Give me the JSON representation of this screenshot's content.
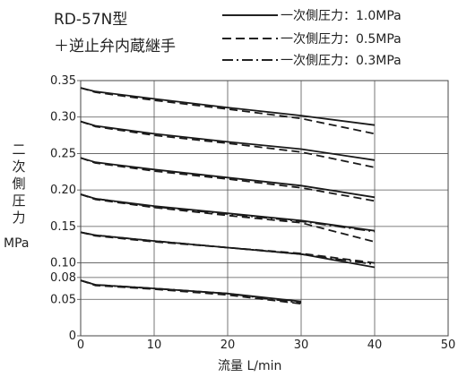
{
  "header": {
    "title_line1": "RD-57N型",
    "title_line2": "＋逆止弁内蔵継手"
  },
  "legend": [
    {
      "label": "一次側圧力：1.0MPa",
      "style": "solid"
    },
    {
      "label": "一次側圧力：0.5MPa",
      "style": "dashed"
    },
    {
      "label": "一次側圧力：0.3MPa",
      "style": "dash-dot"
    }
  ],
  "chart_data": {
    "type": "line",
    "xlabel": "流量 L/min",
    "ylabel": "二次側圧力",
    "ylabel_unit": "MPa",
    "xlim": [
      0,
      50
    ],
    "ylim": [
      0,
      0.35
    ],
    "x_ticks": [
      "0",
      "10",
      "20",
      "30",
      "40",
      "50"
    ],
    "y_ticks": [
      {
        "value": 0.35,
        "label": "0.35"
      },
      {
        "value": 0.3,
        "label": "0.30"
      },
      {
        "value": 0.25,
        "label": "0.25"
      },
      {
        "value": 0.2,
        "label": "0.20"
      },
      {
        "value": 0.15,
        "label": "0.15"
      },
      {
        "value": 0.1,
        "label": "0.10"
      },
      {
        "value": 0.08,
        "label": "0.08"
      },
      {
        "value": 0.05,
        "label": "0.05"
      },
      {
        "value": 0,
        "label": "0"
      }
    ],
    "grid": true,
    "series": [
      {
        "name": "一次側圧力：1.0MPa",
        "style": "solid",
        "set": 0.34,
        "x": [
          0,
          2,
          10,
          20,
          30,
          40
        ],
        "y": [
          0.34,
          0.335,
          0.325,
          0.313,
          0.302,
          0.289
        ]
      },
      {
        "name": "一次側圧力：0.5MPa",
        "style": "dashed",
        "set": 0.34,
        "x": [
          0,
          2,
          10,
          20,
          30,
          40
        ],
        "y": [
          0.34,
          0.334,
          0.323,
          0.311,
          0.298,
          0.277
        ]
      },
      {
        "style": "solid",
        "set": 0.29,
        "x": [
          0,
          2,
          10,
          20,
          30,
          40
        ],
        "y": [
          0.294,
          0.288,
          0.277,
          0.266,
          0.256,
          0.241
        ]
      },
      {
        "style": "dashed",
        "set": 0.29,
        "x": [
          0,
          2,
          10,
          20,
          30,
          40
        ],
        "y": [
          0.294,
          0.287,
          0.275,
          0.264,
          0.252,
          0.231
        ]
      },
      {
        "style": "solid",
        "set": 0.24,
        "x": [
          0,
          2,
          10,
          20,
          30,
          40
        ],
        "y": [
          0.244,
          0.238,
          0.228,
          0.217,
          0.206,
          0.19
        ]
      },
      {
        "style": "dashed",
        "set": 0.24,
        "x": [
          0,
          2,
          10,
          20,
          30,
          40
        ],
        "y": [
          0.244,
          0.237,
          0.226,
          0.215,
          0.203,
          0.185
        ]
      },
      {
        "style": "solid",
        "set": 0.19,
        "x": [
          0,
          2,
          10,
          20,
          30,
          40
        ],
        "y": [
          0.194,
          0.188,
          0.178,
          0.168,
          0.158,
          0.144
        ]
      },
      {
        "style": "dashed",
        "set": 0.19,
        "x": [
          0,
          2,
          10,
          20,
          30,
          40
        ],
        "y": [
          0.194,
          0.187,
          0.176,
          0.165,
          0.155,
          0.129
        ]
      },
      {
        "name": "一次側圧力：0.3MPa",
        "style": "dash-dot",
        "set": 0.19,
        "x": [
          0,
          2,
          10,
          20,
          30,
          40
        ],
        "y": [
          0.194,
          0.188,
          0.177,
          0.167,
          0.157,
          0.143
        ]
      },
      {
        "style": "solid",
        "set": 0.14,
        "x": [
          0,
          2,
          10,
          20,
          30,
          40
        ],
        "y": [
          0.142,
          0.138,
          0.13,
          0.121,
          0.112,
          0.094
        ]
      },
      {
        "style": "dashed",
        "set": 0.14,
        "x": [
          0,
          2,
          10,
          20,
          30,
          40
        ],
        "y": [
          0.142,
          0.137,
          0.129,
          0.121,
          0.113,
          0.1
        ]
      },
      {
        "style": "dash-dot",
        "set": 0.14,
        "x": [
          0,
          2,
          10,
          20,
          30,
          40
        ],
        "y": [
          0.142,
          0.138,
          0.13,
          0.121,
          0.112,
          0.098
        ]
      },
      {
        "style": "solid",
        "set": 0.075,
        "x": [
          0,
          2,
          10,
          20,
          30
        ],
        "y": [
          0.076,
          0.07,
          0.065,
          0.058,
          0.047
        ]
      },
      {
        "style": "dashed",
        "set": 0.075,
        "x": [
          0,
          2,
          10,
          20,
          30
        ],
        "y": [
          0.076,
          0.069,
          0.064,
          0.056,
          0.044
        ]
      },
      {
        "style": "dash-dot",
        "set": 0.075,
        "x": [
          0,
          2,
          10,
          20,
          30
        ],
        "y": [
          0.076,
          0.07,
          0.065,
          0.058,
          0.045
        ]
      }
    ]
  }
}
